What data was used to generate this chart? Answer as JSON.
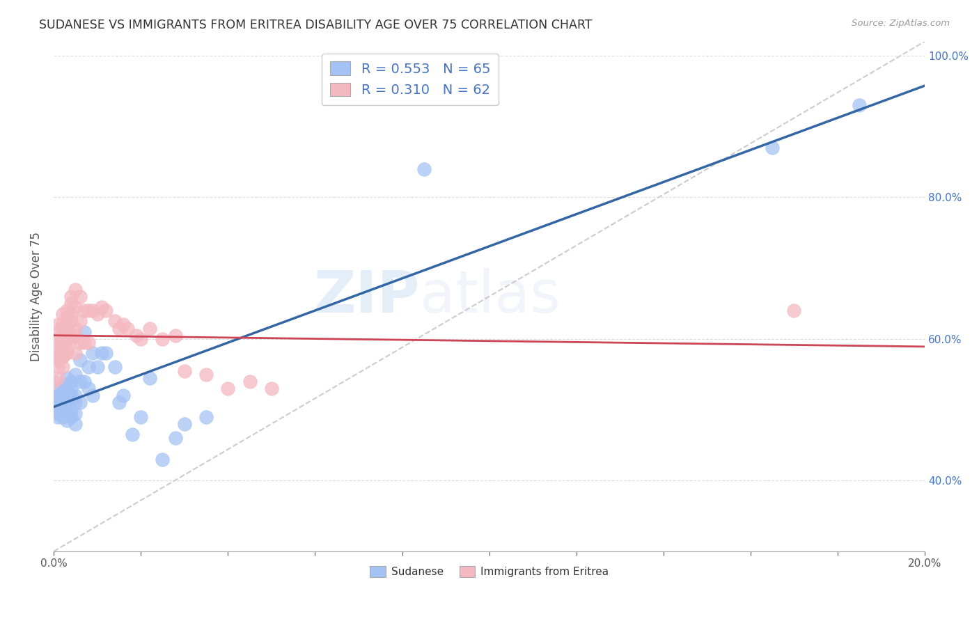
{
  "title": "SUDANESE VS IMMIGRANTS FROM ERITREA DISABILITY AGE OVER 75 CORRELATION CHART",
  "source": "Source: ZipAtlas.com",
  "ylabel_label": "Disability Age Over 75",
  "xlim": [
    0.0,
    0.2
  ],
  "ylim": [
    0.3,
    1.02
  ],
  "ytick_labels": [
    "40.0%",
    "60.0%",
    "80.0%",
    "100.0%"
  ],
  "yticks": [
    0.4,
    0.6,
    0.8,
    1.0
  ],
  "blue_color": "#a4c2f4",
  "pink_color": "#f4b8c1",
  "line_blue": "#3465a4",
  "line_pink": "#cc4455",
  "r_blue": 0.553,
  "n_blue": 65,
  "r_pink": 0.31,
  "n_pink": 62,
  "watermark": "ZIPatlas",
  "legend_label1": "Sudanese",
  "legend_label2": "Immigrants from Eritrea",
  "blue_scatter_x": [
    0.0,
    0.0,
    0.001,
    0.001,
    0.001,
    0.001,
    0.001,
    0.001,
    0.001,
    0.001,
    0.002,
    0.002,
    0.002,
    0.002,
    0.002,
    0.002,
    0.002,
    0.002,
    0.002,
    0.002,
    0.003,
    0.003,
    0.003,
    0.003,
    0.003,
    0.003,
    0.003,
    0.003,
    0.003,
    0.004,
    0.004,
    0.004,
    0.004,
    0.004,
    0.004,
    0.005,
    0.005,
    0.005,
    0.005,
    0.005,
    0.006,
    0.006,
    0.006,
    0.007,
    0.007,
    0.008,
    0.008,
    0.009,
    0.009,
    0.01,
    0.011,
    0.012,
    0.014,
    0.015,
    0.016,
    0.018,
    0.02,
    0.022,
    0.025,
    0.028,
    0.03,
    0.035,
    0.085,
    0.165,
    0.185
  ],
  "blue_scatter_y": [
    0.51,
    0.5,
    0.505,
    0.495,
    0.52,
    0.51,
    0.5,
    0.49,
    0.53,
    0.515,
    0.515,
    0.505,
    0.525,
    0.51,
    0.498,
    0.535,
    0.49,
    0.52,
    0.51,
    0.5,
    0.52,
    0.51,
    0.5,
    0.515,
    0.53,
    0.495,
    0.485,
    0.545,
    0.51,
    0.53,
    0.515,
    0.5,
    0.49,
    0.54,
    0.52,
    0.55,
    0.52,
    0.495,
    0.48,
    0.51,
    0.57,
    0.54,
    0.51,
    0.61,
    0.54,
    0.56,
    0.53,
    0.58,
    0.52,
    0.56,
    0.58,
    0.58,
    0.56,
    0.51,
    0.52,
    0.465,
    0.49,
    0.545,
    0.43,
    0.46,
    0.48,
    0.49,
    0.84,
    0.87,
    0.93
  ],
  "pink_scatter_x": [
    0.0,
    0.0,
    0.001,
    0.001,
    0.001,
    0.001,
    0.001,
    0.001,
    0.001,
    0.001,
    0.002,
    0.002,
    0.002,
    0.002,
    0.002,
    0.002,
    0.002,
    0.002,
    0.002,
    0.003,
    0.003,
    0.003,
    0.003,
    0.003,
    0.003,
    0.003,
    0.004,
    0.004,
    0.004,
    0.004,
    0.004,
    0.005,
    0.005,
    0.005,
    0.005,
    0.005,
    0.006,
    0.006,
    0.006,
    0.007,
    0.007,
    0.008,
    0.008,
    0.009,
    0.01,
    0.011,
    0.012,
    0.014,
    0.015,
    0.016,
    0.017,
    0.019,
    0.02,
    0.022,
    0.025,
    0.028,
    0.03,
    0.035,
    0.04,
    0.045,
    0.05,
    0.17
  ],
  "pink_scatter_y": [
    0.58,
    0.54,
    0.62,
    0.6,
    0.575,
    0.56,
    0.59,
    0.61,
    0.545,
    0.57,
    0.62,
    0.6,
    0.575,
    0.59,
    0.56,
    0.635,
    0.615,
    0.575,
    0.595,
    0.63,
    0.61,
    0.58,
    0.6,
    0.64,
    0.615,
    0.585,
    0.65,
    0.625,
    0.6,
    0.66,
    0.635,
    0.67,
    0.645,
    0.615,
    0.605,
    0.58,
    0.66,
    0.625,
    0.595,
    0.64,
    0.595,
    0.64,
    0.595,
    0.64,
    0.635,
    0.645,
    0.64,
    0.625,
    0.615,
    0.62,
    0.615,
    0.605,
    0.6,
    0.615,
    0.6,
    0.605,
    0.555,
    0.55,
    0.53,
    0.54,
    0.53,
    0.64
  ]
}
